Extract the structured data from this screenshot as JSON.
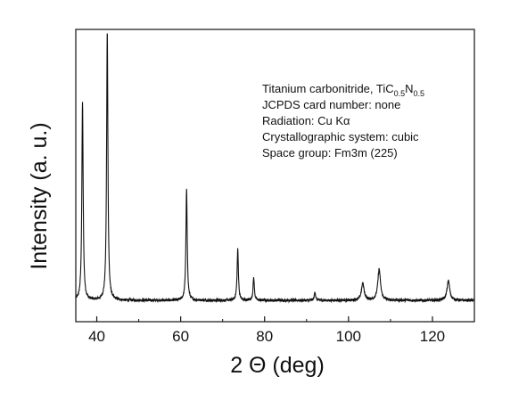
{
  "chart_data": {
    "type": "line",
    "xlabel": "2 Θ (deg)",
    "ylabel": "Intensity (a. u.)",
    "xlim": [
      35,
      130
    ],
    "ylim": [
      0,
      100
    ],
    "xticks": [
      40,
      60,
      80,
      100,
      120
    ],
    "grid": false,
    "yticklabels_shown": false,
    "annotation": {
      "line1_prefix": "Titanium carbonitride, TiC",
      "line1_sub1": "0.5",
      "line1_mid": "N",
      "line1_sub2": "0.5",
      "line2": "JCPDS card number: none",
      "line3": "Radiation: Cu Kα",
      "line4": "Crystallographic system: cubic",
      "line5": "Space group: Fm3m (225)"
    },
    "baseline": 5,
    "peaks": [
      {
        "x": 36.6,
        "y": 75
      },
      {
        "x": 42.5,
        "y": 100
      },
      {
        "x": 61.4,
        "y": 44
      },
      {
        "x": 73.6,
        "y": 23
      },
      {
        "x": 77.4,
        "y": 13
      },
      {
        "x": 92.0,
        "y": 8
      },
      {
        "x": 103.4,
        "y": 11
      },
      {
        "x": 107.3,
        "y": 16
      },
      {
        "x": 123.8,
        "y": 12
      }
    ],
    "series": [
      {
        "color": "#111111"
      }
    ]
  }
}
